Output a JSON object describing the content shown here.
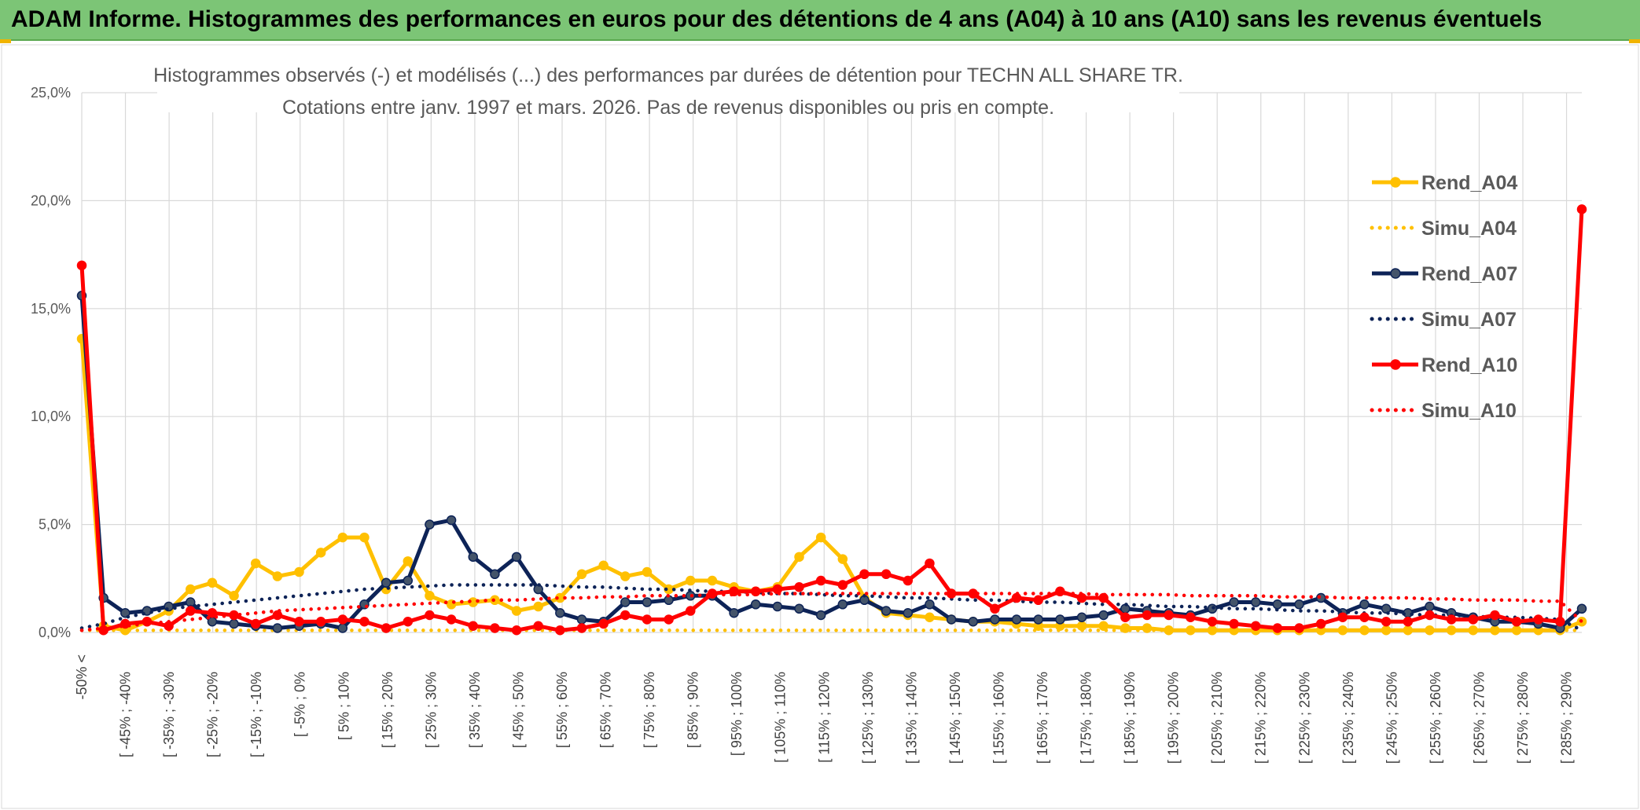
{
  "banner": {
    "title": "ADAM Informe. Histogrammes des performances en euros pour des détentions de 4 ans (A04) à 10 ans (A10) sans les revenus éventuels"
  },
  "chart_data": {
    "type": "line",
    "title_line1": "Histogrammes observés (-) et modélisés (...) des performances par durées de détention pour TECHN ALL SHARE TR.",
    "title_line2": "Cotations entre janv. 1997 et mars. 2026. Pas de revenus disponibles ou pris en compte.",
    "ylim": [
      0,
      25
    ],
    "yticks": [
      0,
      5,
      10,
      15,
      20,
      25
    ],
    "ytick_labels": [
      "0,0%",
      "5,0%",
      "10,0%",
      "15,0%",
      "20,0%",
      "25,0%"
    ],
    "x_labels": [
      "-50% <",
      "[ -45% ; -40%",
      "[ -35% ; -30%",
      "[ -25% ; -20%",
      "[ -15% ; -10%",
      "[ -5% ; 0%",
      "[ 5% ; 10%",
      "[ 15% ; 20%",
      "[ 25% ; 30%",
      "[ 35% ; 40%",
      "[ 45% ; 50%",
      "[ 55% ; 60%",
      "[ 65% ; 70%",
      "[ 75% ; 80%",
      "[ 85% ; 90%",
      "[ 95% ; 100%",
      "[ 105% ; 110%",
      "[ 115% ; 120%",
      "[ 125% ; 130%",
      "[ 135% ; 140%",
      "[ 145% ; 150%",
      "[ 155% ; 160%",
      "[ 165% ; 170%",
      "[ 175% ; 180%",
      "[ 185% ; 190%",
      "[ 195% ; 200%",
      "[ 205% ; 210%",
      "[ 215% ; 220%",
      "[ 225% ; 230%",
      "[ 235% ; 240%",
      "[ 245% ; 250%",
      "[ 255% ; 260%",
      "[ 265% ; 270%",
      "[ 275% ; 280%",
      "[ 285% ; 290%"
    ],
    "series": [
      {
        "name": "Rend_A04",
        "style": "solid",
        "color": "#ffc000",
        "marker": true,
        "values": [
          13.6,
          0.3,
          0.1,
          0.5,
          1.0,
          2.0,
          2.3,
          1.7,
          3.2,
          2.6,
          2.8,
          3.7,
          4.4,
          4.4,
          2.0,
          3.3,
          1.7,
          1.3,
          1.4,
          1.5,
          1.0,
          1.2,
          1.6,
          2.7,
          3.1,
          2.6,
          2.8,
          2.0,
          2.4,
          2.4,
          2.1,
          1.9,
          2.1,
          3.5,
          4.4,
          3.4,
          1.6,
          0.9,
          0.8,
          0.7,
          0.6,
          0.5,
          0.5,
          0.4,
          0.3,
          0.3,
          0.3,
          0.3,
          0.2,
          0.2,
          0.1,
          0.1,
          0.1,
          0.1,
          0.1,
          0.1,
          0.1,
          0.1,
          0.1,
          0.1,
          0.1,
          0.1,
          0.1,
          0.1,
          0.1,
          0.1,
          0.1,
          0.1,
          0.1,
          0.5
        ]
      },
      {
        "name": "Simu_A04",
        "style": "dotted",
        "color": "#ffc000",
        "marker": false,
        "values": [
          0.1,
          0.1,
          0.1,
          0.1,
          0.1,
          0.1,
          0.1,
          0.1,
          0.1,
          0.1,
          0.1,
          0.1,
          0.1,
          0.1,
          0.1,
          0.1,
          0.1,
          0.1,
          0.1,
          0.1,
          0.1,
          0.1,
          0.1,
          0.1,
          0.1,
          0.1,
          0.1,
          0.1,
          0.1,
          0.1,
          0.1,
          0.1,
          0.1,
          0.1,
          0.1,
          0.1,
          0.1,
          0.1,
          0.1,
          0.1,
          0.1,
          0.1,
          0.1,
          0.1,
          0.1,
          0.1,
          0.1,
          0.1,
          0.1,
          0.1,
          0.1,
          0.1,
          0.1,
          0.1,
          0.1,
          0.1,
          0.1,
          0.1,
          0.1,
          0.1,
          0.1,
          0.1,
          0.1,
          0.1,
          0.1,
          0.1,
          0.1,
          0.1,
          0.1,
          0.1
        ]
      },
      {
        "name": "Rend_A07",
        "style": "solid",
        "color": "#0d2357",
        "marker": true,
        "values": [
          15.6,
          1.6,
          0.9,
          1.0,
          1.2,
          1.4,
          0.5,
          0.4,
          0.3,
          0.2,
          0.3,
          0.4,
          0.2,
          1.3,
          2.3,
          2.4,
          5.0,
          5.2,
          3.5,
          2.7,
          3.5,
          2.0,
          0.9,
          0.6,
          0.5,
          1.4,
          1.4,
          1.5,
          1.7,
          1.7,
          0.9,
          1.3,
          1.2,
          1.1,
          0.8,
          1.3,
          1.5,
          1.0,
          0.9,
          1.3,
          0.6,
          0.5,
          0.6,
          0.6,
          0.6,
          0.6,
          0.7,
          0.8,
          1.1,
          1.0,
          0.9,
          0.8,
          1.1,
          1.4,
          1.4,
          1.3,
          1.3,
          1.6,
          0.9,
          1.3,
          1.1,
          0.9,
          1.2,
          0.9,
          0.7,
          0.5,
          0.5,
          0.4,
          0.2,
          1.1
        ]
      },
      {
        "name": "Simu_A07",
        "style": "dotted",
        "color": "#0d2357",
        "marker": false,
        "values": [
          0.2,
          0.4,
          0.7,
          0.9,
          1.1,
          1.2,
          1.3,
          1.4,
          1.5,
          1.6,
          1.7,
          1.8,
          1.9,
          2.0,
          2.05,
          2.1,
          2.15,
          2.2,
          2.2,
          2.2,
          2.2,
          2.2,
          2.15,
          2.1,
          2.1,
          2.05,
          2.0,
          2.0,
          1.95,
          1.9,
          1.9,
          1.85,
          1.8,
          1.8,
          1.75,
          1.7,
          1.7,
          1.65,
          1.6,
          1.6,
          1.55,
          1.5,
          1.5,
          1.45,
          1.4,
          1.4,
          1.35,
          1.3,
          1.3,
          1.25,
          1.2,
          1.2,
          1.15,
          1.1,
          1.1,
          1.05,
          1.0,
          1.0,
          0.95,
          0.9,
          0.9,
          0.85,
          0.8,
          0.8,
          0.75,
          0.7,
          0.7,
          0.65,
          0.6,
          0.1
        ]
      },
      {
        "name": "Rend_A10",
        "style": "solid",
        "color": "#ff0000",
        "marker": true,
        "values": [
          17.0,
          0.1,
          0.4,
          0.5,
          0.3,
          1.0,
          0.9,
          0.8,
          0.4,
          0.8,
          0.5,
          0.5,
          0.6,
          0.5,
          0.2,
          0.5,
          0.8,
          0.6,
          0.3,
          0.2,
          0.1,
          0.3,
          0.1,
          0.2,
          0.4,
          0.8,
          0.6,
          0.6,
          1.0,
          1.8,
          1.9,
          1.9,
          2.0,
          2.1,
          2.4,
          2.2,
          2.7,
          2.7,
          2.4,
          3.2,
          1.8,
          1.8,
          1.1,
          1.6,
          1.5,
          1.9,
          1.6,
          1.6,
          0.7,
          0.8,
          0.8,
          0.7,
          0.5,
          0.4,
          0.3,
          0.2,
          0.2,
          0.4,
          0.7,
          0.7,
          0.5,
          0.5,
          0.8,
          0.6,
          0.6,
          0.8,
          0.5,
          0.6,
          0.5,
          19.6
        ]
      },
      {
        "name": "Simu_A10",
        "style": "dotted",
        "color": "#ff0000",
        "marker": false,
        "values": [
          0.1,
          0.2,
          0.3,
          0.4,
          0.5,
          0.6,
          0.7,
          0.8,
          0.9,
          1.0,
          1.05,
          1.1,
          1.15,
          1.2,
          1.25,
          1.3,
          1.35,
          1.4,
          1.45,
          1.5,
          1.5,
          1.55,
          1.6,
          1.6,
          1.65,
          1.65,
          1.7,
          1.7,
          1.7,
          1.75,
          1.75,
          1.75,
          1.8,
          1.8,
          1.8,
          1.8,
          1.8,
          1.8,
          1.8,
          1.8,
          1.8,
          1.8,
          1.8,
          1.8,
          1.8,
          1.8,
          1.8,
          1.75,
          1.75,
          1.75,
          1.75,
          1.7,
          1.7,
          1.7,
          1.7,
          1.65,
          1.65,
          1.65,
          1.6,
          1.6,
          1.6,
          1.6,
          1.55,
          1.55,
          1.5,
          1.5,
          1.5,
          1.45,
          1.45,
          0.5
        ]
      }
    ]
  }
}
